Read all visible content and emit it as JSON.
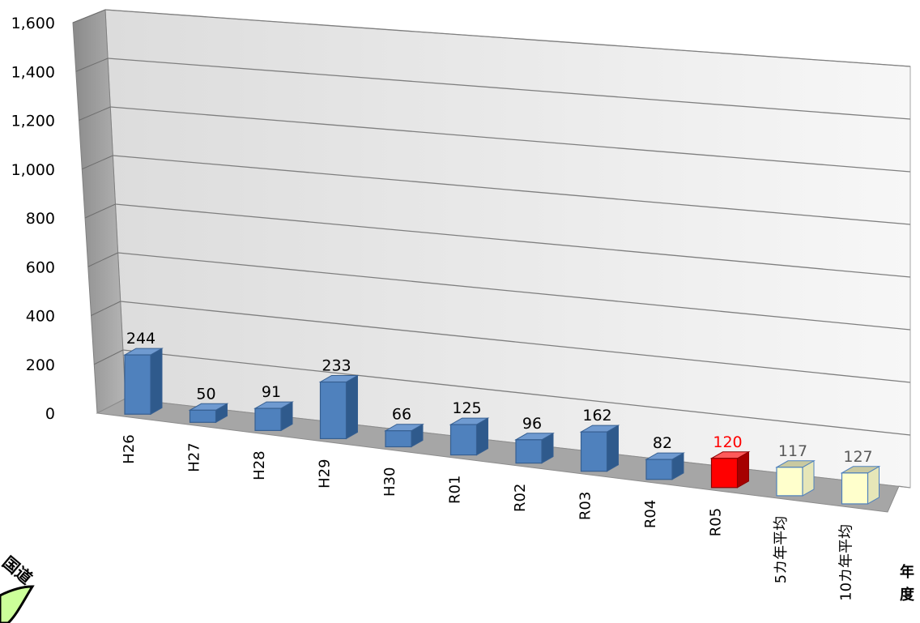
{
  "chart_data": {
    "type": "bar",
    "categories": [
      "H26",
      "H27",
      "H28",
      "H29",
      "H30",
      "R01",
      "R02",
      "R03",
      "R04",
      "R05",
      "5カ年平均",
      "10カ年平均"
    ],
    "values": [
      244,
      50,
      91,
      233,
      66,
      125,
      96,
      162,
      82,
      120,
      117,
      127
    ],
    "data_labels": [
      "244",
      "50",
      "91",
      "233",
      "66",
      "125",
      "96",
      "162",
      "82",
      "120",
      "117",
      "127"
    ],
    "bar_styles": [
      "normal",
      "normal",
      "normal",
      "normal",
      "normal",
      "normal",
      "normal",
      "normal",
      "normal",
      "highlight",
      "average",
      "average"
    ],
    "ylim": [
      0,
      1600
    ],
    "yticks": [
      "0",
      "200",
      "400",
      "600",
      "800",
      "1,000",
      "1,200",
      "1,400",
      "1,600"
    ],
    "xlabel": "年度",
    "grid": true,
    "legend": "none",
    "colors": {
      "normal": "#4f81bd",
      "highlight": "#ff0000",
      "average": "#ffffcc",
      "average_label": "#595959",
      "highlight_label": "#ff0000",
      "normal_label": "#000000"
    }
  },
  "logo": {
    "text": "国道",
    "color": "#ccff99"
  }
}
